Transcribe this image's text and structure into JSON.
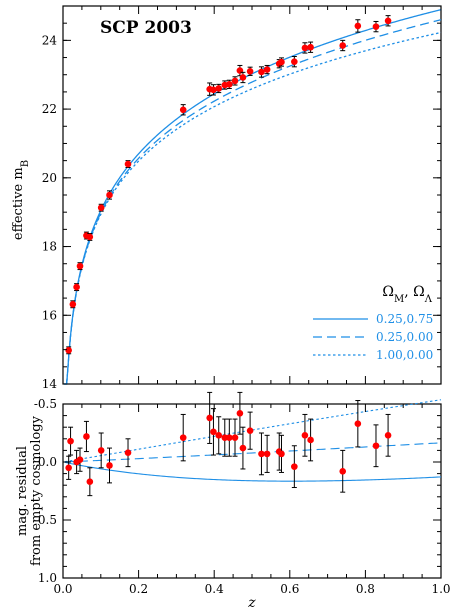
{
  "chart_data": [
    {
      "type": "scatter",
      "title": "SCP 2003",
      "xlabel": "",
      "ylabel": "effective m_B",
      "ylabel_main": "effective m",
      "ylabel_sub": "B",
      "xlim": [
        0.0,
        1.0
      ],
      "ylim": [
        14,
        25
      ],
      "yticks": [
        "14",
        "16",
        "18",
        "20",
        "22",
        "24"
      ],
      "legend": {
        "title_main_1": "Ω",
        "title_sub_1": "M",
        "title_sep": ", ",
        "title_main_2": "Ω",
        "title_sub_2": "Λ",
        "position": "bottom-right",
        "entries": [
          {
            "label": "0.25,0.75",
            "style": "solid"
          },
          {
            "label": "0.25,0.00",
            "style": "dashed"
          },
          {
            "label": "1.00,0.00",
            "style": "dotted"
          }
        ]
      },
      "points": [
        {
          "x": 0.015,
          "y": 14.98,
          "err": 0.1
        },
        {
          "x": 0.026,
          "y": 16.32,
          "err": 0.1
        },
        {
          "x": 0.036,
          "y": 16.82,
          "err": 0.1
        },
        {
          "x": 0.045,
          "y": 17.43,
          "err": 0.1
        },
        {
          "x": 0.062,
          "y": 18.32,
          "err": 0.1
        },
        {
          "x": 0.071,
          "y": 18.28,
          "err": 0.1
        },
        {
          "x": 0.101,
          "y": 19.13,
          "err": 0.1
        },
        {
          "x": 0.123,
          "y": 19.5,
          "err": 0.12
        },
        {
          "x": 0.172,
          "y": 20.4,
          "err": 0.1
        },
        {
          "x": 0.318,
          "y": 21.98,
          "err": 0.15
        },
        {
          "x": 0.388,
          "y": 22.58,
          "err": 0.18
        },
        {
          "x": 0.398,
          "y": 22.56,
          "err": 0.15
        },
        {
          "x": 0.412,
          "y": 22.6,
          "err": 0.12
        },
        {
          "x": 0.428,
          "y": 22.7,
          "err": 0.12
        },
        {
          "x": 0.44,
          "y": 22.72,
          "err": 0.12
        },
        {
          "x": 0.455,
          "y": 22.82,
          "err": 0.12
        },
        {
          "x": 0.468,
          "y": 23.12,
          "err": 0.15
        },
        {
          "x": 0.476,
          "y": 22.92,
          "err": 0.15
        },
        {
          "x": 0.495,
          "y": 23.1,
          "err": 0.12
        },
        {
          "x": 0.525,
          "y": 23.08,
          "err": 0.15
        },
        {
          "x": 0.54,
          "y": 23.15,
          "err": 0.12
        },
        {
          "x": 0.572,
          "y": 23.32,
          "err": 0.12
        },
        {
          "x": 0.578,
          "y": 23.37,
          "err": 0.12
        },
        {
          "x": 0.612,
          "y": 23.38,
          "err": 0.15
        },
        {
          "x": 0.64,
          "y": 23.78,
          "err": 0.15
        },
        {
          "x": 0.655,
          "y": 23.8,
          "err": 0.15
        },
        {
          "x": 0.74,
          "y": 23.85,
          "err": 0.15
        },
        {
          "x": 0.78,
          "y": 24.42,
          "err": 0.18
        },
        {
          "x": 0.828,
          "y": 24.4,
          "err": 0.15
        },
        {
          "x": 0.86,
          "y": 24.57,
          "err": 0.15
        }
      ]
    },
    {
      "type": "scatter",
      "xlabel": "z",
      "ylabel": "mag. residual from empty cosmology",
      "ylabel_line1": "mag. residual",
      "ylabel_line2": "from empty cosmology",
      "xlim": [
        0.0,
        1.0
      ],
      "ylim": [
        1.0,
        -0.5
      ],
      "yticks": [
        "-0.5",
        "0.0",
        "0.5",
        "1.0"
      ],
      "xticks": [
        "0.0",
        "0.2",
        "0.4",
        "0.6",
        "0.8",
        "1.0"
      ],
      "points": [
        {
          "x": 0.015,
          "y": 0.05,
          "err": 0.1
        },
        {
          "x": 0.02,
          "y": -0.18,
          "err": 0.12
        },
        {
          "x": 0.036,
          "y": 0.0,
          "err": 0.1
        },
        {
          "x": 0.045,
          "y": -0.02,
          "err": 0.1
        },
        {
          "x": 0.062,
          "y": -0.22,
          "err": 0.13
        },
        {
          "x": 0.071,
          "y": 0.17,
          "err": 0.12
        },
        {
          "x": 0.101,
          "y": -0.1,
          "err": 0.15
        },
        {
          "x": 0.123,
          "y": 0.03,
          "err": 0.15
        },
        {
          "x": 0.172,
          "y": -0.08,
          "err": 0.12
        },
        {
          "x": 0.318,
          "y": -0.21,
          "err": 0.2
        },
        {
          "x": 0.388,
          "y": -0.38,
          "err": 0.22
        },
        {
          "x": 0.398,
          "y": -0.26,
          "err": 0.2
        },
        {
          "x": 0.412,
          "y": -0.23,
          "err": 0.16
        },
        {
          "x": 0.428,
          "y": -0.21,
          "err": 0.16
        },
        {
          "x": 0.44,
          "y": -0.21,
          "err": 0.16
        },
        {
          "x": 0.455,
          "y": -0.21,
          "err": 0.16
        },
        {
          "x": 0.468,
          "y": -0.42,
          "err": 0.18
        },
        {
          "x": 0.476,
          "y": -0.12,
          "err": 0.18
        },
        {
          "x": 0.495,
          "y": -0.27,
          "err": 0.16
        },
        {
          "x": 0.525,
          "y": -0.07,
          "err": 0.18
        },
        {
          "x": 0.54,
          "y": -0.07,
          "err": 0.16
        },
        {
          "x": 0.572,
          "y": -0.09,
          "err": 0.16
        },
        {
          "x": 0.578,
          "y": -0.07,
          "err": 0.16
        },
        {
          "x": 0.612,
          "y": 0.04,
          "err": 0.18
        },
        {
          "x": 0.64,
          "y": -0.23,
          "err": 0.18
        },
        {
          "x": 0.655,
          "y": -0.19,
          "err": 0.18
        },
        {
          "x": 0.74,
          "y": 0.08,
          "err": 0.18
        },
        {
          "x": 0.78,
          "y": -0.33,
          "err": 0.2
        },
        {
          "x": 0.828,
          "y": -0.14,
          "err": 0.18
        },
        {
          "x": 0.86,
          "y": -0.23,
          "err": 0.18
        }
      ]
    }
  ],
  "colors": {
    "point": "#ff0000",
    "curve": "#1f8fe6",
    "axis": "#000000"
  }
}
